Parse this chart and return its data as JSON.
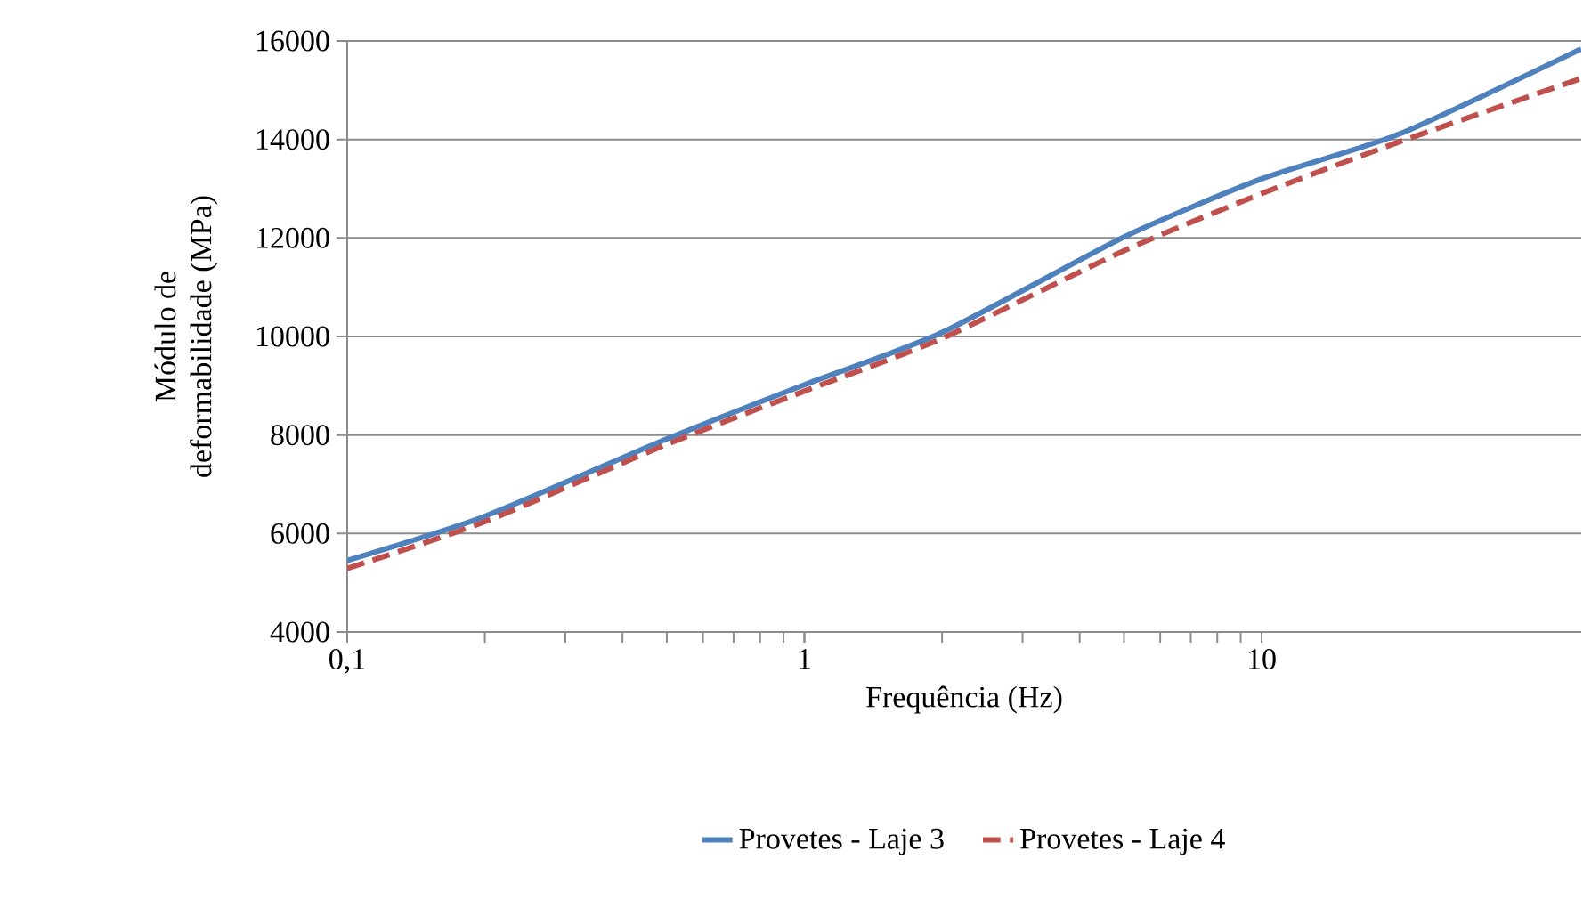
{
  "chart_data": {
    "type": "line",
    "xlabel": "Frequência (Hz)",
    "ylabel": "Módulo de deformabilidade (MPa)",
    "log": "x",
    "grid": "y",
    "legend": "bottom",
    "xlim": [
      0.1,
      50
    ],
    "xticks": [
      {
        "value": 0.1,
        "label": "0,1"
      },
      1,
      10
    ],
    "ylim": [
      4000,
      16000
    ],
    "yticks": [
      4000,
      6000,
      8000,
      10000,
      12000,
      14000,
      16000
    ],
    "x": [
      0.1,
      0.2,
      0.5,
      1,
      2,
      5,
      10,
      20,
      50
    ],
    "series": [
      {
        "name": "Provetes - Laje 3",
        "color": "#4f81bd",
        "line_style": "solid",
        "values": [
          5450,
          6350,
          7920,
          9020,
          10080,
          12020,
          13200,
          14110,
          15840
        ]
      },
      {
        "name": "Provetes - Laje 4",
        "color": "#c0504d",
        "line_style": "dashed",
        "values": [
          5290,
          6240,
          7810,
          8890,
          9960,
          11740,
          12900,
          13950,
          15240
        ]
      }
    ]
  }
}
